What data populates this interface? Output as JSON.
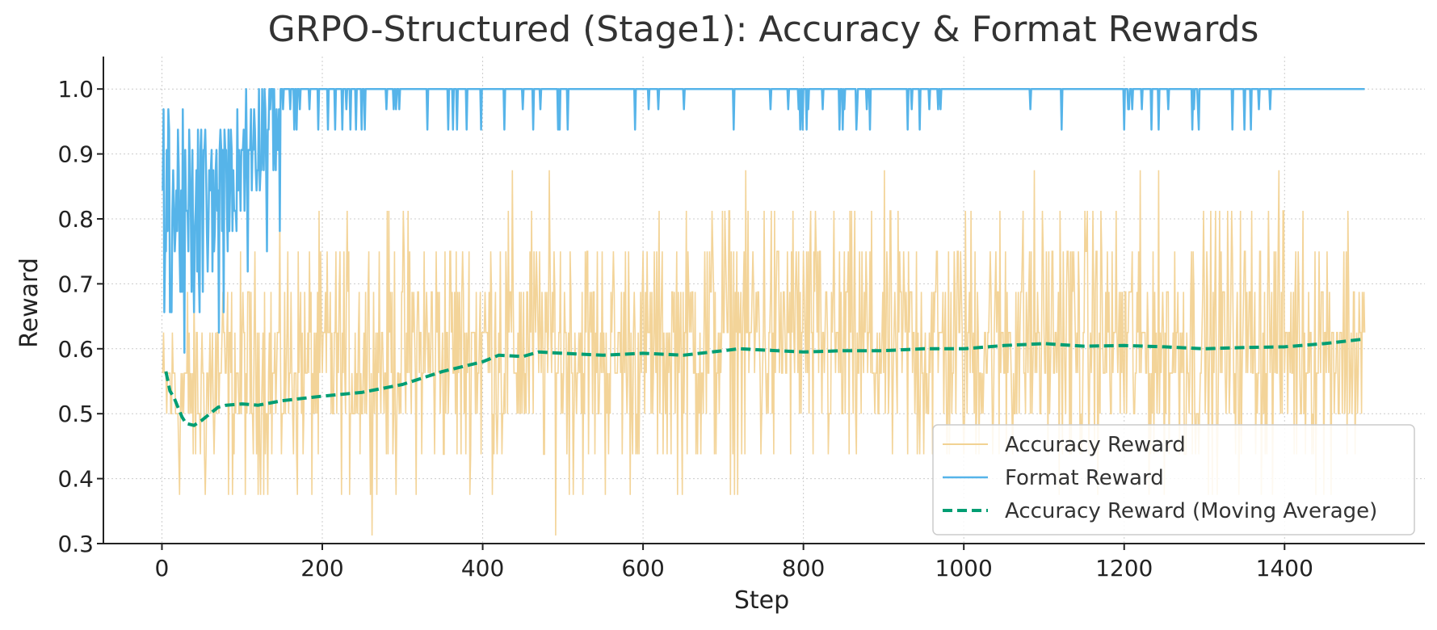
{
  "chart_data": {
    "type": "line",
    "title": "GRPO-Structured (Stage1): Accuracy & Format Rewards",
    "xlabel": "Step",
    "ylabel": "Reward",
    "xlim": [
      -73,
      1575
    ],
    "ylim": [
      0.3,
      1.05
    ],
    "xticks": [
      0,
      200,
      400,
      600,
      800,
      1000,
      1200,
      1400
    ],
    "yticks": [
      0.3,
      0.4,
      0.5,
      0.6,
      0.7,
      0.8,
      0.9,
      1.0
    ],
    "grid": true,
    "legend_position": "lower-right",
    "steps": 1500,
    "series": [
      {
        "name": "Accuracy Reward",
        "color": "#f2d293",
        "style": "solid",
        "envelope_x": [
          0,
          100,
          200,
          300,
          400,
          500,
          600,
          700,
          800,
          900,
          1000,
          1100,
          1200,
          1300,
          1400,
          1500
        ],
        "envelope_low": [
          0.3,
          0.3,
          0.3,
          0.31,
          0.31,
          0.3,
          0.3,
          0.31,
          0.3,
          0.3,
          0.31,
          0.31,
          0.31,
          0.3,
          0.3,
          0.3
        ],
        "envelope_high": [
          0.75,
          0.82,
          0.85,
          0.88,
          0.91,
          0.91,
          0.88,
          0.94,
          0.94,
          0.9,
          0.91,
          0.94,
          0.91,
          0.91,
          0.94,
          0.91
        ]
      },
      {
        "name": "Format Reward",
        "color": "#56b4e9",
        "style": "solid",
        "anchors_x": [
          0,
          20,
          40,
          60,
          80,
          100,
          120,
          150,
          200,
          250,
          300,
          400,
          500,
          600,
          800,
          1000,
          1200,
          1400,
          1500
        ],
        "anchors_y": [
          0.8,
          0.82,
          0.78,
          0.82,
          0.85,
          0.9,
          0.94,
          0.97,
          0.98,
          0.985,
          0.99,
          0.995,
          0.995,
          0.995,
          0.99,
          0.99,
          0.995,
          0.995,
          1.0
        ]
      },
      {
        "name": "Accuracy Reward (Moving Average)",
        "color": "#009e73",
        "style": "dashed",
        "x": [
          5,
          10,
          15,
          20,
          25,
          30,
          40,
          50,
          60,
          70,
          80,
          100,
          120,
          150,
          200,
          250,
          300,
          350,
          400,
          420,
          450,
          470,
          500,
          550,
          600,
          650,
          700,
          720,
          750,
          800,
          850,
          900,
          950,
          1000,
          1050,
          1100,
          1150,
          1200,
          1250,
          1300,
          1350,
          1400,
          1450,
          1500
        ],
        "y": [
          0.565,
          0.535,
          0.525,
          0.51,
          0.495,
          0.485,
          0.482,
          0.49,
          0.5,
          0.51,
          0.513,
          0.515,
          0.513,
          0.52,
          0.527,
          0.533,
          0.545,
          0.565,
          0.58,
          0.59,
          0.588,
          0.595,
          0.593,
          0.59,
          0.593,
          0.59,
          0.597,
          0.6,
          0.598,
          0.595,
          0.597,
          0.597,
          0.6,
          0.6,
          0.605,
          0.608,
          0.604,
          0.605,
          0.603,
          0.6,
          0.602,
          0.603,
          0.608,
          0.615
        ]
      }
    ]
  }
}
